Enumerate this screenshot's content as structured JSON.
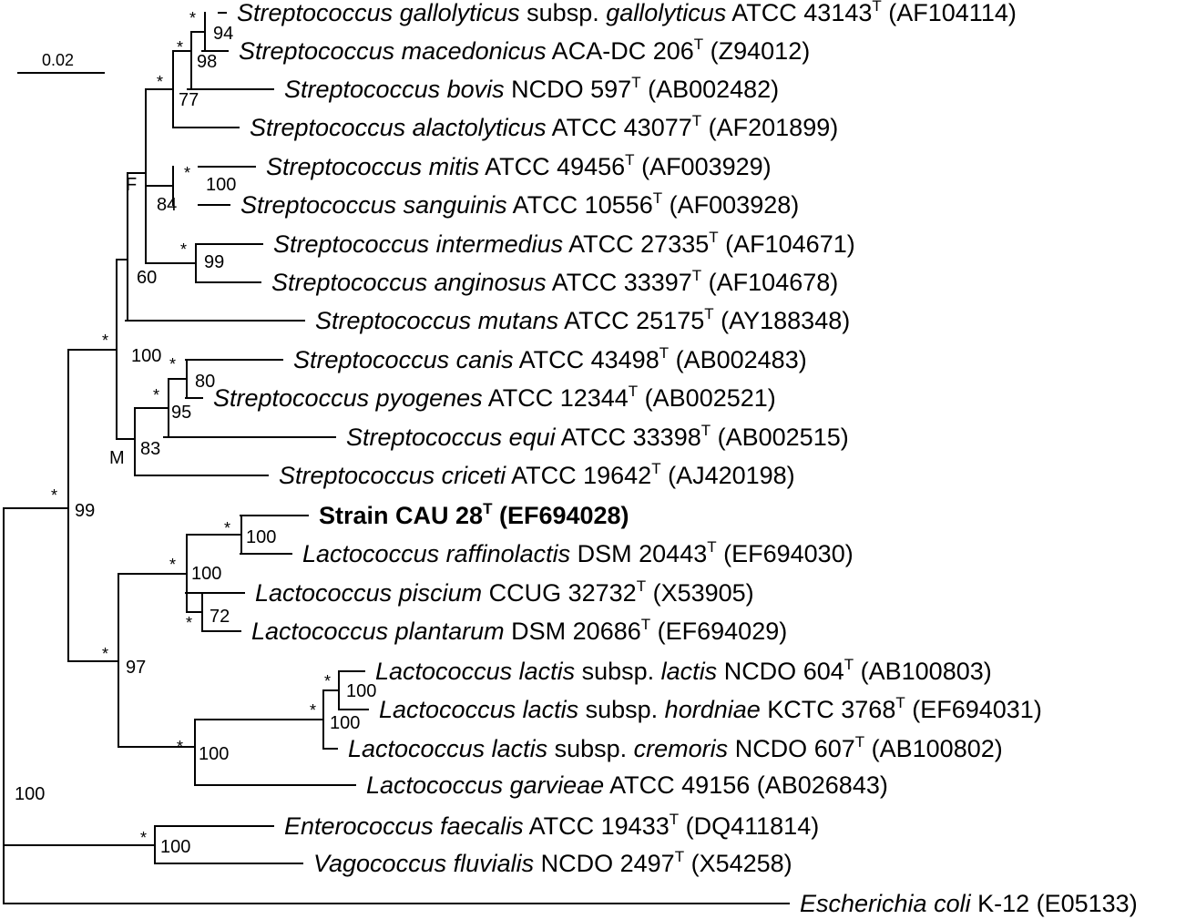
{
  "scale_bar": {
    "label": "0.02"
  },
  "taxa": [
    {
      "id": "s_gall",
      "parts": [
        {
          "t": "Streptococcus gallolyticus",
          "i": true
        },
        {
          "t": " subsp. "
        },
        {
          "t": "gallolyticus",
          "i": true
        },
        {
          "t": " ATCC 43143"
        },
        {
          "t": "T",
          "sup": true
        },
        {
          "t": " (AF104114)"
        }
      ]
    },
    {
      "id": "s_mace",
      "parts": [
        {
          "t": "Streptococcus macedonicus",
          "i": true
        },
        {
          "t": " ACA-DC 206"
        },
        {
          "t": "T",
          "sup": true
        },
        {
          "t": " (Z94012)"
        }
      ]
    },
    {
      "id": "s_bovi",
      "parts": [
        {
          "t": "Streptococcus bovis",
          "i": true
        },
        {
          "t": " NCDO 597"
        },
        {
          "t": "T",
          "sup": true
        },
        {
          "t": " (AB002482)"
        }
      ]
    },
    {
      "id": "s_alac",
      "parts": [
        {
          "t": "Streptococcus alactolyticus",
          "i": true
        },
        {
          "t": " ATCC 43077"
        },
        {
          "t": "T",
          "sup": true
        },
        {
          "t": " (AF201899)"
        }
      ]
    },
    {
      "id": "s_miti",
      "parts": [
        {
          "t": "Streptococcus mitis",
          "i": true
        },
        {
          "t": " ATCC 49456"
        },
        {
          "t": "T",
          "sup": true
        },
        {
          "t": " (AF003929)"
        }
      ]
    },
    {
      "id": "s_sang",
      "parts": [
        {
          "t": "Streptococcus sanguinis",
          "i": true
        },
        {
          "t": " ATCC 10556"
        },
        {
          "t": "T",
          "sup": true
        },
        {
          "t": " (AF003928)"
        }
      ]
    },
    {
      "id": "s_inte",
      "parts": [
        {
          "t": "Streptococcus intermedius",
          "i": true
        },
        {
          "t": " ATCC 27335"
        },
        {
          "t": "T",
          "sup": true
        },
        {
          "t": " (AF104671)"
        }
      ]
    },
    {
      "id": "s_angi",
      "parts": [
        {
          "t": "Streptococcus anginosus",
          "i": true
        },
        {
          "t": " ATCC 33397"
        },
        {
          "t": "T",
          "sup": true
        },
        {
          "t": " (AF104678)"
        }
      ]
    },
    {
      "id": "s_muta",
      "parts": [
        {
          "t": "Streptococcus mutans",
          "i": true
        },
        {
          "t": " ATCC 25175"
        },
        {
          "t": "T",
          "sup": true
        },
        {
          "t": " (AY188348)"
        }
      ]
    },
    {
      "id": "s_cani",
      "parts": [
        {
          "t": "Streptococcus canis",
          "i": true
        },
        {
          "t": " ATCC 43498"
        },
        {
          "t": "T",
          "sup": true
        },
        {
          "t": " (AB002483)"
        }
      ]
    },
    {
      "id": "s_pyog",
      "parts": [
        {
          "t": "Streptococcus pyogenes",
          "i": true
        },
        {
          "t": " ATCC 12344"
        },
        {
          "t": "T",
          "sup": true
        },
        {
          "t": " (AB002521)"
        }
      ]
    },
    {
      "id": "s_equi",
      "parts": [
        {
          "t": "Streptococcus equi",
          "i": true
        },
        {
          "t": " ATCC 33398"
        },
        {
          "t": "T",
          "sup": true
        },
        {
          "t": " (AB002515)"
        }
      ]
    },
    {
      "id": "s_cric",
      "parts": [
        {
          "t": "Streptococcus criceti",
          "i": true
        },
        {
          "t": " ATCC 19642"
        },
        {
          "t": "T",
          "sup": true
        },
        {
          "t": " (AJ420198)"
        }
      ]
    },
    {
      "id": "strain",
      "bold": true,
      "parts": [
        {
          "t": "Strain CAU 28"
        },
        {
          "t": "T",
          "sup": true
        },
        {
          "t": " (EF694028)"
        }
      ]
    },
    {
      "id": "l_raff",
      "parts": [
        {
          "t": "Lactococcus raffinolactis",
          "i": true
        },
        {
          "t": " DSM 20443"
        },
        {
          "t": "T",
          "sup": true
        },
        {
          "t": " (EF694030)"
        }
      ]
    },
    {
      "id": "l_pisc",
      "parts": [
        {
          "t": "Lactococcus piscium",
          "i": true
        },
        {
          "t": " CCUG 32732"
        },
        {
          "t": "T",
          "sup": true
        },
        {
          "t": " (X53905)"
        }
      ]
    },
    {
      "id": "l_plan",
      "parts": [
        {
          "t": "Lactococcus plantarum",
          "i": true
        },
        {
          "t": " DSM 20686"
        },
        {
          "t": "T",
          "sup": true
        },
        {
          "t": " (EF694029)"
        }
      ]
    },
    {
      "id": "l_lact",
      "parts": [
        {
          "t": "Lactococcus lactis",
          "i": true
        },
        {
          "t": " subsp. "
        },
        {
          "t": "lactis",
          "i": true
        },
        {
          "t": " NCDO 604"
        },
        {
          "t": "T",
          "sup": true
        },
        {
          "t": " (AB100803)"
        }
      ]
    },
    {
      "id": "l_hord",
      "parts": [
        {
          "t": "Lactococcus lactis",
          "i": true
        },
        {
          "t": " subsp. "
        },
        {
          "t": "hordniae",
          "i": true
        },
        {
          "t": " KCTC 3768"
        },
        {
          "t": "T",
          "sup": true
        },
        {
          "t": " (EF694031)"
        }
      ]
    },
    {
      "id": "l_crem",
      "parts": [
        {
          "t": "Lactococcus lactis",
          "i": true
        },
        {
          "t": " subsp. "
        },
        {
          "t": "cremoris",
          "i": true
        },
        {
          "t": " NCDO 607"
        },
        {
          "t": "T",
          "sup": true
        },
        {
          "t": " (AB100802)"
        }
      ]
    },
    {
      "id": "l_garv",
      "parts": [
        {
          "t": "Lactococcus garvieae",
          "i": true
        },
        {
          "t": " ATCC 49156 (AB026843)"
        }
      ]
    },
    {
      "id": "e_faec",
      "parts": [
        {
          "t": "Enterococcus faecalis",
          "i": true
        },
        {
          "t": " ATCC 19433"
        },
        {
          "t": "T",
          "sup": true
        },
        {
          "t": " (DQ411814)"
        }
      ]
    },
    {
      "id": "v_fluv",
      "parts": [
        {
          "t": "Vagococcus fluvialis",
          "i": true
        },
        {
          "t": " NCDO 2497"
        },
        {
          "t": "T",
          "sup": true
        },
        {
          "t": " (X54258)"
        }
      ]
    },
    {
      "id": "e_coli",
      "parts": [
        {
          "t": "Escherichia coli",
          "i": true
        },
        {
          "t": " K-12 (E05133)"
        }
      ]
    }
  ],
  "bootstrap": [
    "94",
    "98",
    "77",
    "100",
    "84",
    "99",
    "60",
    "100",
    "80",
    "95",
    "83",
    "99",
    "100",
    "100",
    "72",
    "100",
    "100",
    "97",
    "100",
    "100",
    "100",
    "99"
  ],
  "star": "*",
  "node_labels": {
    "F": "F",
    "M": "M"
  }
}
